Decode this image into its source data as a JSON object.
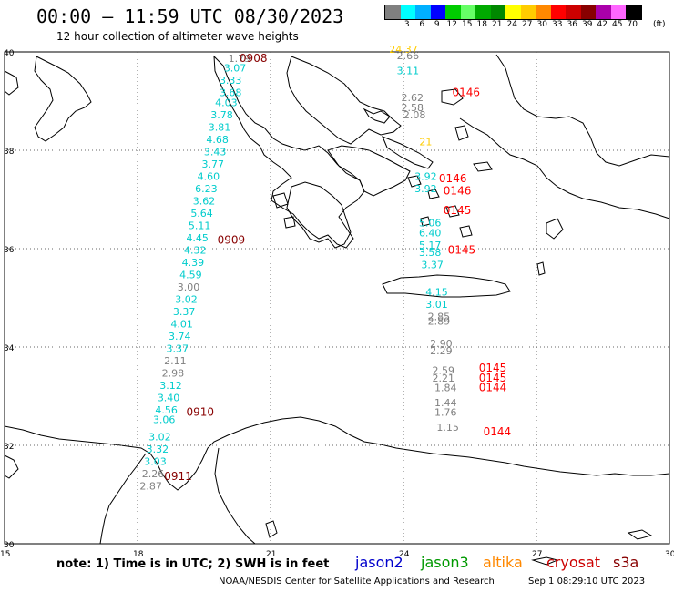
{
  "title": "00:00 – 11:59 UTC 08/30/2023",
  "subtitle": "12 hour collection of altimeter wave heights",
  "legend": {
    "unit": "(ft)",
    "bins": [
      {
        "label": "",
        "color": "#808080"
      },
      {
        "label": "3",
        "color": "#00ffff"
      },
      {
        "label": "6",
        "color": "#00b0ff"
      },
      {
        "label": "9",
        "color": "#0000ff"
      },
      {
        "label": "12",
        "color": "#00cc00"
      },
      {
        "label": "15",
        "color": "#66ff66"
      },
      {
        "label": "18",
        "color": "#00aa00"
      },
      {
        "label": "21",
        "color": "#008800"
      },
      {
        "label": "24",
        "color": "#ffff00"
      },
      {
        "label": "27",
        "color": "#ffcc00"
      },
      {
        "label": "30",
        "color": "#ff8800"
      },
      {
        "label": "33",
        "color": "#ff0000"
      },
      {
        "label": "36",
        "color": "#cc0000"
      },
      {
        "label": "39",
        "color": "#880000"
      },
      {
        "label": "42",
        "color": "#aa00aa"
      },
      {
        "label": "45",
        "color": "#ff66ff"
      },
      {
        "label": "70",
        "color": "#000000"
      }
    ]
  },
  "axes": {
    "lat_labels": [
      "40",
      "38",
      "36",
      "34",
      "32",
      "30"
    ],
    "lon_labels": [
      "15",
      "18",
      "21",
      "24",
      "27",
      "30"
    ]
  },
  "passes": [
    {
      "time": "0908",
      "color": "#880000",
      "lon": 20.3,
      "lat": 39.8
    },
    {
      "time": "0909",
      "color": "#880000",
      "lon": 19.8,
      "lat": 36.1
    },
    {
      "time": "0910",
      "color": "#880000",
      "lon": 19.1,
      "lat": 32.6
    },
    {
      "time": "0911",
      "color": "#880000",
      "lon": 18.6,
      "lat": 31.3
    },
    {
      "time": "0146",
      "color": "#ff0000",
      "lon": 25.1,
      "lat": 39.1
    },
    {
      "time": "0146",
      "color": "#ff0000",
      "lon": 24.8,
      "lat": 37.35
    },
    {
      "time": "0146",
      "color": "#ff0000",
      "lon": 24.9,
      "lat": 37.1
    },
    {
      "time": "0145",
      "color": "#ff0000",
      "lon": 24.9,
      "lat": 36.7
    },
    {
      "time": "0145",
      "color": "#ff0000",
      "lon": 25.0,
      "lat": 35.9
    },
    {
      "time": "0145",
      "color": "#ff0000",
      "lon": 25.7,
      "lat": 33.5
    },
    {
      "time": "0145",
      "color": "#ff0000",
      "lon": 25.7,
      "lat": 33.3
    },
    {
      "time": "0144",
      "color": "#ff0000",
      "lon": 25.7,
      "lat": 33.1
    },
    {
      "time": "0144",
      "color": "#ff0000",
      "lon": 25.8,
      "lat": 32.2
    }
  ],
  "track_west": [
    {
      "v": "1.79",
      "c": "#808080",
      "lon": 20.3,
      "lat": 39.8
    },
    {
      "v": "3.07",
      "c": "#00cccc",
      "lon": 20.2,
      "lat": 39.6
    },
    {
      "v": "3.33",
      "c": "#00cccc",
      "lon": 20.1,
      "lat": 39.35
    },
    {
      "v": "3.68",
      "c": "#00cccc",
      "lon": 20.1,
      "lat": 39.1
    },
    {
      "v": "4.03",
      "c": "#00cccc",
      "lon": 20.0,
      "lat": 38.9
    },
    {
      "v": "3.78",
      "c": "#00cccc",
      "lon": 19.9,
      "lat": 38.65
    },
    {
      "v": "3.81",
      "c": "#00cccc",
      "lon": 19.85,
      "lat": 38.4
    },
    {
      "v": "4.68",
      "c": "#00cccc",
      "lon": 19.8,
      "lat": 38.15
    },
    {
      "v": "3.43",
      "c": "#00cccc",
      "lon": 19.75,
      "lat": 37.9
    },
    {
      "v": "3.77",
      "c": "#00cccc",
      "lon": 19.7,
      "lat": 37.65
    },
    {
      "v": "4.60",
      "c": "#00cccc",
      "lon": 19.6,
      "lat": 37.4
    },
    {
      "v": "6.23",
      "c": "#00cccc",
      "lon": 19.55,
      "lat": 37.15
    },
    {
      "v": "3.62",
      "c": "#00cccc",
      "lon": 19.5,
      "lat": 36.9
    },
    {
      "v": "5.64",
      "c": "#00cccc",
      "lon": 19.45,
      "lat": 36.65
    },
    {
      "v": "5.11",
      "c": "#00cccc",
      "lon": 19.4,
      "lat": 36.4
    },
    {
      "v": "4.45",
      "c": "#00cccc",
      "lon": 19.35,
      "lat": 36.15
    },
    {
      "v": "4.32",
      "c": "#00cccc",
      "lon": 19.3,
      "lat": 35.9
    },
    {
      "v": "4.39",
      "c": "#00cccc",
      "lon": 19.25,
      "lat": 35.65
    },
    {
      "v": "4.59",
      "c": "#00cccc",
      "lon": 19.2,
      "lat": 35.4
    },
    {
      "v": "3.00",
      "c": "#808080",
      "lon": 19.15,
      "lat": 35.15
    },
    {
      "v": "3.02",
      "c": "#00cccc",
      "lon": 19.1,
      "lat": 34.9
    },
    {
      "v": "3.37",
      "c": "#00cccc",
      "lon": 19.05,
      "lat": 34.65
    },
    {
      "v": "4.01",
      "c": "#00cccc",
      "lon": 19.0,
      "lat": 34.4
    },
    {
      "v": "3.74",
      "c": "#00cccc",
      "lon": 18.95,
      "lat": 34.15
    },
    {
      "v": "3.37",
      "c": "#00cccc",
      "lon": 18.9,
      "lat": 33.9
    },
    {
      "v": "2.11",
      "c": "#808080",
      "lon": 18.85,
      "lat": 33.65
    },
    {
      "v": "2.98",
      "c": "#808080",
      "lon": 18.8,
      "lat": 33.4
    },
    {
      "v": "3.12",
      "c": "#00cccc",
      "lon": 18.75,
      "lat": 33.15
    },
    {
      "v": "3.40",
      "c": "#00cccc",
      "lon": 18.7,
      "lat": 32.9
    },
    {
      "v": "4.56",
      "c": "#00cccc",
      "lon": 18.65,
      "lat": 32.65
    },
    {
      "v": "3.06",
      "c": "#00cccc",
      "lon": 18.6,
      "lat": 32.45
    },
    {
      "v": "3.02",
      "c": "#00cccc",
      "lon": 18.5,
      "lat": 32.1
    },
    {
      "v": "3.32",
      "c": "#00cccc",
      "lon": 18.45,
      "lat": 31.85
    },
    {
      "v": "3.03",
      "c": "#00cccc",
      "lon": 18.4,
      "lat": 31.6
    },
    {
      "v": "2.26",
      "c": "#808080",
      "lon": 18.35,
      "lat": 31.35
    },
    {
      "v": "2.87",
      "c": "#808080",
      "lon": 18.3,
      "lat": 31.1
    }
  ],
  "track_east": [
    {
      "v": "24.37",
      "c": "#ffcc00",
      "lon": 24.0,
      "lat": 39.98
    },
    {
      "v": "2.66",
      "c": "#808080",
      "lon": 24.1,
      "lat": 39.85
    },
    {
      "v": "3.11",
      "c": "#00cccc",
      "lon": 24.1,
      "lat": 39.55
    },
    {
      "v": "2.62",
      "c": "#808080",
      "lon": 24.2,
      "lat": 39.0
    },
    {
      "v": "2.58",
      "c": "#808080",
      "lon": 24.2,
      "lat": 38.8
    },
    {
      "v": "2.08",
      "c": "#808080",
      "lon": 24.25,
      "lat": 38.65
    },
    {
      "v": "21",
      "c": "#ffcc00",
      "lon": 24.5,
      "lat": 38.1
    },
    {
      "v": "3.92",
      "c": "#00cccc",
      "lon": 24.5,
      "lat": 37.4
    },
    {
      "v": "3.92",
      "c": "#00cccc",
      "lon": 24.5,
      "lat": 37.15
    },
    {
      "v": "5.06",
      "c": "#00cccc",
      "lon": 24.6,
      "lat": 36.45
    },
    {
      "v": "6.40",
      "c": "#00cccc",
      "lon": 24.6,
      "lat": 36.25
    },
    {
      "v": "5.17",
      "c": "#00cccc",
      "lon": 24.6,
      "lat": 36.0
    },
    {
      "v": "3.58",
      "c": "#00cccc",
      "lon": 24.6,
      "lat": 35.85
    },
    {
      "v": "3.37",
      "c": "#00cccc",
      "lon": 24.65,
      "lat": 35.6
    },
    {
      "v": "4.15",
      "c": "#00cccc",
      "lon": 24.75,
      "lat": 35.05
    },
    {
      "v": "3.01",
      "c": "#00cccc",
      "lon": 24.75,
      "lat": 34.8
    },
    {
      "v": "2.85",
      "c": "#808080",
      "lon": 24.8,
      "lat": 34.55
    },
    {
      "v": "2.89",
      "c": "#808080",
      "lon": 24.8,
      "lat": 34.45
    },
    {
      "v": "2.90",
      "c": "#808080",
      "lon": 24.85,
      "lat": 34.0
    },
    {
      "v": "2.29",
      "c": "#808080",
      "lon": 24.85,
      "lat": 33.85
    },
    {
      "v": "2.59",
      "c": "#808080",
      "lon": 24.9,
      "lat": 33.45
    },
    {
      "v": "2.21",
      "c": "#808080",
      "lon": 24.9,
      "lat": 33.3
    },
    {
      "v": "1.84",
      "c": "#808080",
      "lon": 24.95,
      "lat": 33.1
    },
    {
      "v": "1.44",
      "c": "#808080",
      "lon": 24.95,
      "lat": 32.8
    },
    {
      "v": "1.76",
      "c": "#808080",
      "lon": 24.95,
      "lat": 32.6
    },
    {
      "v": "1.15",
      "c": "#808080",
      "lon": 25.0,
      "lat": 32.3
    }
  ],
  "note": "note: 1) Time is in UTC; 2) SWH is in feet",
  "satellites": [
    {
      "name": "jason2",
      "color": "#0000cc"
    },
    {
      "name": "jason3",
      "color": "#009900"
    },
    {
      "name": "altika",
      "color": "#ff8800"
    },
    {
      "name": "cryosat",
      "color": "#cc0000"
    },
    {
      "name": "s3a",
      "color": "#880000"
    }
  ],
  "footer": "NOAA/NESDIS Center for Satellite Applications and Research",
  "footer_timestamp": "Sep  1 08:29:10 UTC 2023"
}
